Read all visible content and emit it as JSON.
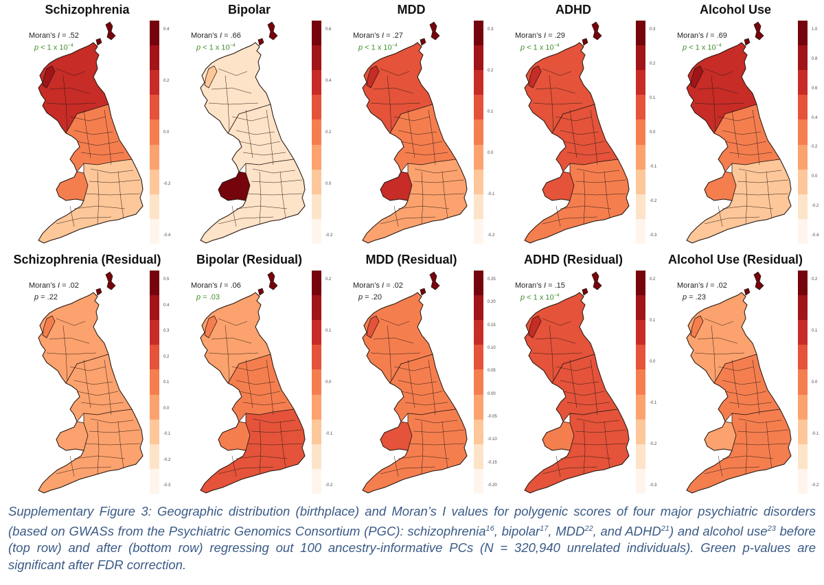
{
  "caption": {
    "part1": "Supplementary Figure 3: Geographic distribution (birthplace) and Moran’s I values for polygenic scores of four major psychiatric disorders (based on GWASs from the Psychiatric Genomics Consortium (PGC): schizophrenia",
    "ref1": "16",
    "part2": ", bipolar",
    "ref2": "17",
    "part3": ", MDD",
    "ref3": "22",
    "part4": ", and ADHD",
    "ref4": "21",
    "part5": ") and alcohol use",
    "ref5": "23",
    "part6": " before (top row) and after (bottom row) regressing out 100 ancestry-informative PCs (N = 320,940 unrelated individuals). Green p-values are significant after FDR correction."
  },
  "colors": {
    "scale": [
      "#fff5ec",
      "#fde3c8",
      "#fdc79a",
      "#fca26e",
      "#f57e4f",
      "#e4533a",
      "#c72c27",
      "#a11418",
      "#75040c"
    ],
    "significant_text": "#3f8f2a",
    "caption_text": "#3a5a86",
    "border": "#2a1a12"
  },
  "panels": [
    {
      "title": "Schizophrenia",
      "moran_prefix": "Moran’s ",
      "moran_i": "I",
      "moran_val": " = .52",
      "p_text": "p < 1 x 10",
      "p_exp": "−4",
      "significant": true,
      "ticks": [
        "0.4",
        "0.2",
        "0.0",
        "-0.2",
        "-0.4"
      ],
      "north_level": 6,
      "south_level": 2,
      "west_level": 4,
      "hotspot_level": 8
    },
    {
      "title": "Bipolar",
      "moran_prefix": "Moran’s ",
      "moran_i": "I",
      "moran_val": " = .66",
      "p_text": "p < 1 x 10",
      "p_exp": "−4",
      "significant": true,
      "ticks": [
        "0.6",
        "0.4",
        "0.2",
        "0.0",
        "-0.2"
      ],
      "north_level": 1,
      "south_level": 1,
      "west_level": 8,
      "hotspot_level": 8
    },
    {
      "title": "MDD",
      "moran_prefix": "Moran’s ",
      "moran_i": "I",
      "moran_val": " = .27",
      "p_text": "p < 1 x 10",
      "p_exp": "−4",
      "significant": true,
      "ticks": [
        "0.3",
        "0.2",
        "0.1",
        "0.0",
        "-0.1",
        "-0.2"
      ],
      "north_level": 5,
      "south_level": 3,
      "west_level": 6,
      "hotspot_level": 8
    },
    {
      "title": "ADHD",
      "moran_prefix": "Moran’s ",
      "moran_i": "I",
      "moran_val": " = .29",
      "p_text": "p < 1 x 10",
      "p_exp": "−4",
      "significant": true,
      "ticks": [
        "0.3",
        "0.2",
        "0.1",
        "0.0",
        "-0.1",
        "-0.2",
        "-0.3"
      ],
      "north_level": 5,
      "south_level": 4,
      "west_level": 5,
      "hotspot_level": 8
    },
    {
      "title": "Alcohol Use",
      "moran_prefix": "Moran’s ",
      "moran_i": "I",
      "moran_val": " = .69",
      "p_text": "p < 1 x 10",
      "p_exp": "−4",
      "significant": true,
      "ticks": [
        "1.0",
        "0.8",
        "0.6",
        "0.4",
        "0.2",
        "0.0",
        "-0.2",
        "-0.4"
      ],
      "north_level": 6,
      "south_level": 2,
      "west_level": 4,
      "hotspot_level": 8
    },
    {
      "title": "Schizophrenia (Residual)",
      "moran_prefix": "Moran’s ",
      "moran_i": "I",
      "moran_val": " = .02",
      "p_text": "p = .22",
      "p_exp": "",
      "significant": false,
      "ticks": [
        "0.5",
        "0.4",
        "0.3",
        "0.2",
        "0.1",
        "0.0",
        "-0.1",
        "-0.2",
        "-0.3"
      ],
      "north_level": 3,
      "south_level": 3,
      "west_level": 3,
      "hotspot_level": 8
    },
    {
      "title": "Bipolar (Residual)",
      "moran_prefix": "Moran’s ",
      "moran_i": "I",
      "moran_val": " = .06",
      "p_text": "p = .03",
      "p_exp": "",
      "significant": true,
      "ticks": [
        "0.2",
        "0.1",
        "0.0",
        "-0.1",
        "-0.2"
      ],
      "north_level": 3,
      "south_level": 5,
      "west_level": 4,
      "hotspot_level": 8
    },
    {
      "title": "MDD (Residual)",
      "moran_prefix": "Moran’s ",
      "moran_i": "I",
      "moran_val": " = .02",
      "p_text": "p = .20",
      "p_exp": "",
      "significant": false,
      "ticks": [
        "0.25",
        "0.20",
        "0.15",
        "0.10",
        "0.05",
        "0.00",
        "-0.05",
        "-0.10",
        "-0.15",
        "-0.20"
      ],
      "north_level": 4,
      "south_level": 4,
      "west_level": 5,
      "hotspot_level": 8
    },
    {
      "title": "ADHD (Residual)",
      "moran_prefix": "Moran’s ",
      "moran_i": "I",
      "moran_val": " = .15",
      "p_text": "p < 1 x 10",
      "p_exp": "−4",
      "significant": true,
      "ticks": [
        "0.2",
        "0.1",
        "0.0",
        "-0.1",
        "-0.2",
        "-0.3"
      ],
      "north_level": 5,
      "south_level": 5,
      "west_level": 4,
      "hotspot_level": 8
    },
    {
      "title": "Alcohol Use (Residual)",
      "moran_prefix": "Moran’s ",
      "moran_i": "I",
      "moran_val": " = .02",
      "p_text": "p = .23",
      "p_exp": "",
      "significant": false,
      "ticks": [
        "0.2",
        "0.1",
        "0.0",
        "-0.1",
        "-0.2"
      ],
      "north_level": 3,
      "south_level": 4,
      "west_level": 3,
      "hotspot_level": 8
    }
  ]
}
